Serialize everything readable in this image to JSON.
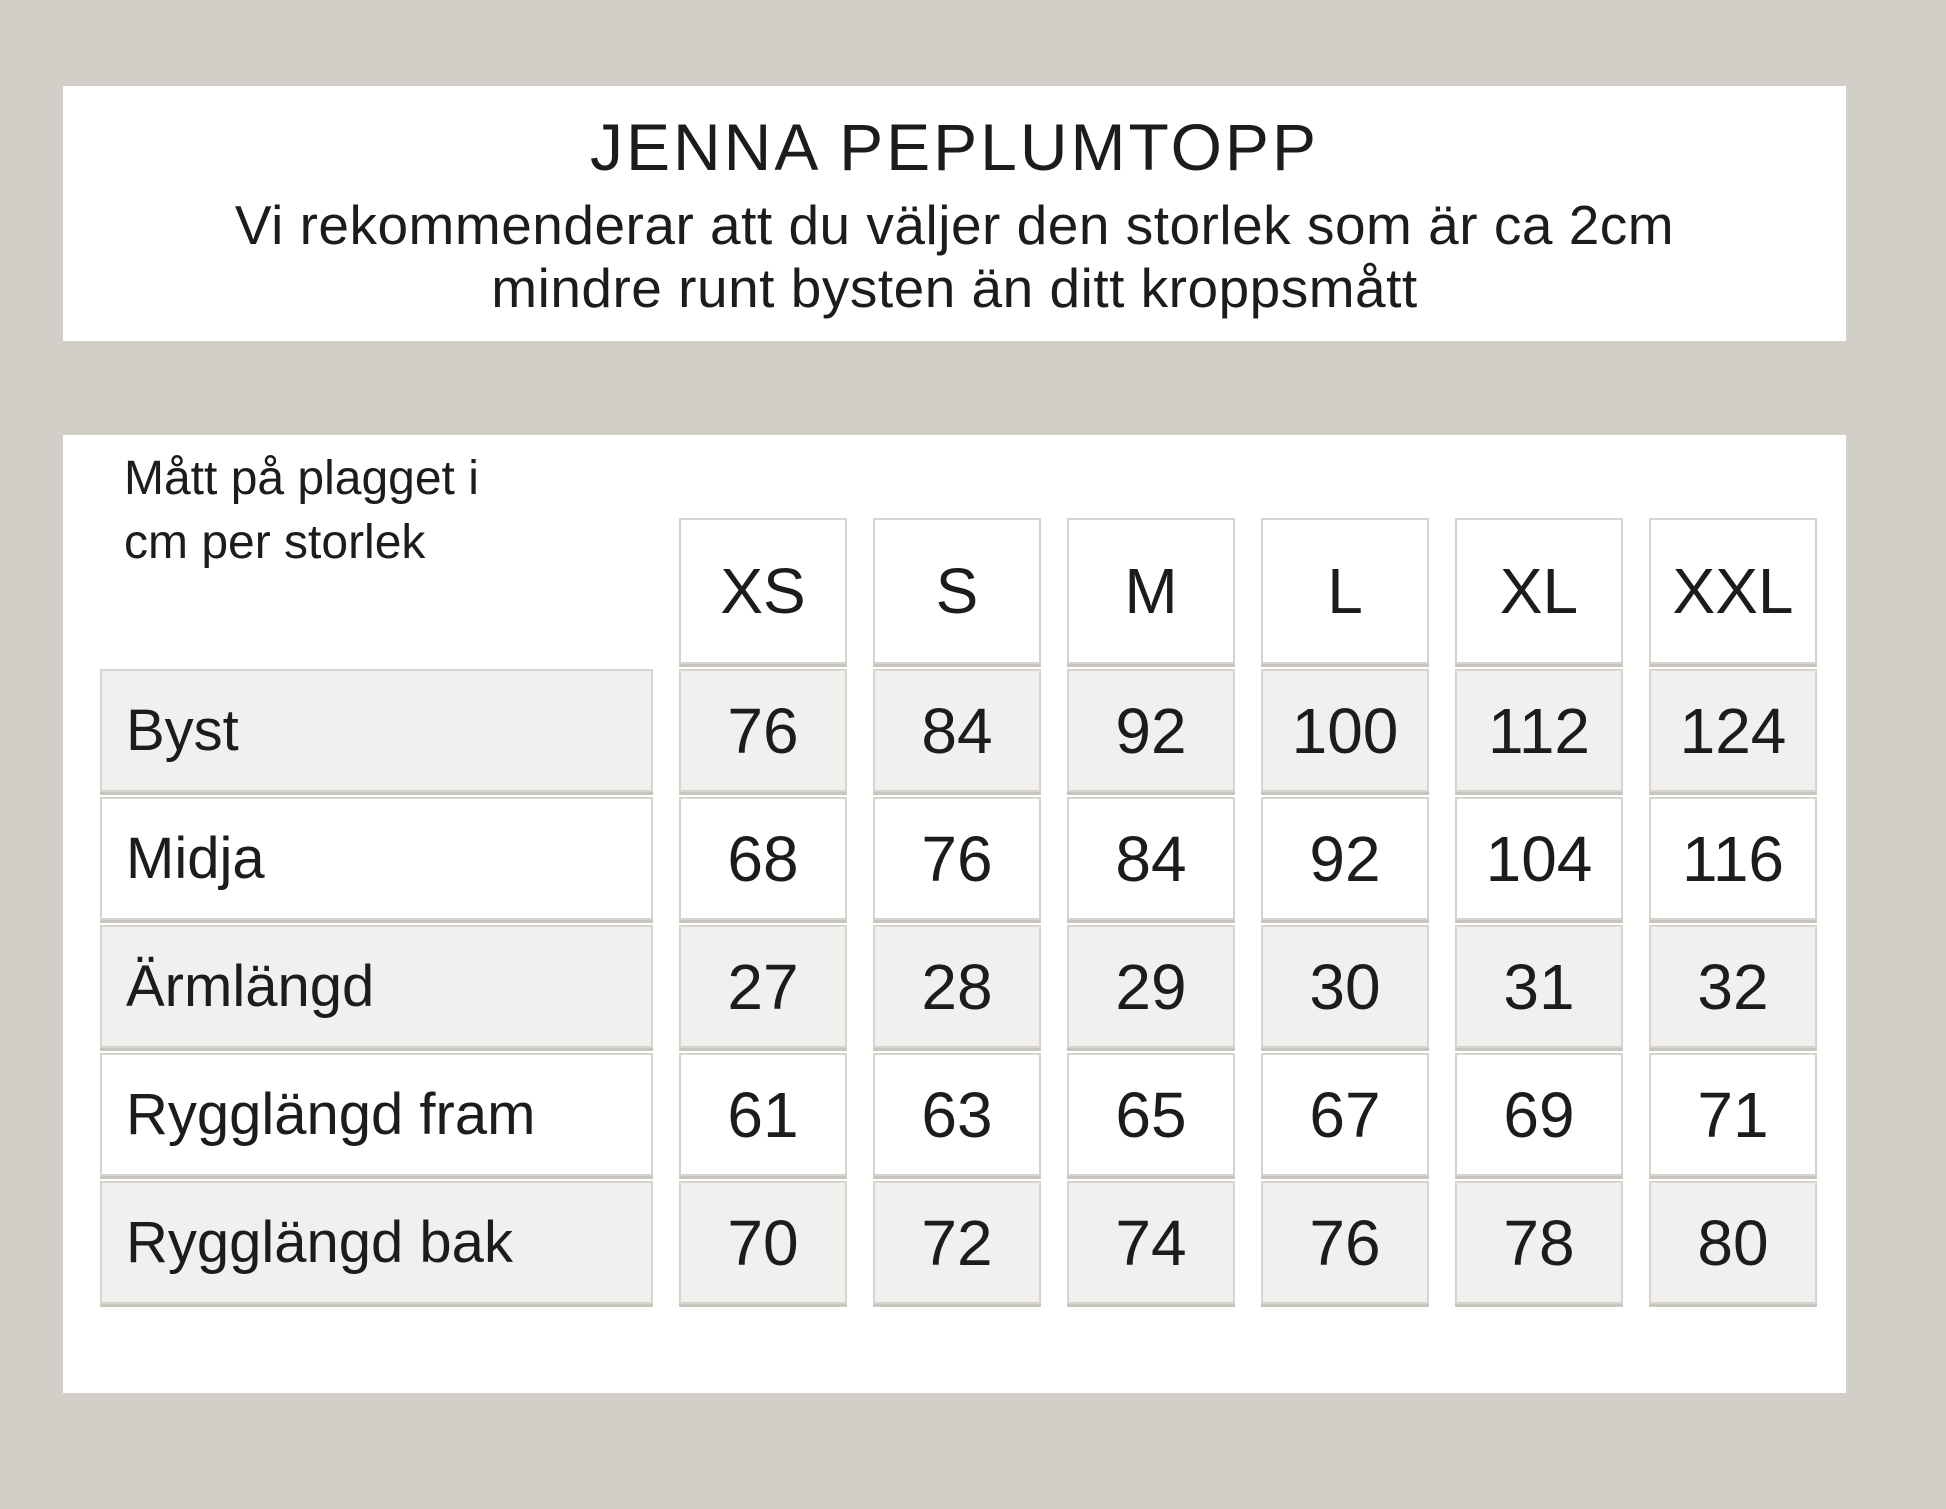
{
  "page": {
    "background_color": "#d2cfc8",
    "panel_color": "#ffffff",
    "shaded_cell_color": "#f1f0ee",
    "cell_border_color": "#d7d4cd",
    "text_color": "#1c1c1a"
  },
  "header": {
    "title": "JENNA PEPLUMTOPP",
    "subtitle_line1": "Vi rekommenderar att du väljer den storlek som är ca 2cm",
    "subtitle_line2": "mindre runt bysten än ditt kroppsmått"
  },
  "table": {
    "measure_header_line1": "Mått på plagget i",
    "measure_header_line2": "cm per storlek"
  },
  "chart_data": {
    "type": "table",
    "title": "JENNA PEPLUMTOPP",
    "columns": [
      "Mått på plagget i cm per storlek",
      "XS",
      "S",
      "M",
      "L",
      "XL",
      "XXL"
    ],
    "rows": [
      [
        "Byst",
        76,
        84,
        92,
        100,
        112,
        124
      ],
      [
        "Midja",
        68,
        76,
        84,
        92,
        104,
        116
      ],
      [
        "Ärmlängd",
        27,
        28,
        29,
        30,
        31,
        32
      ],
      [
        "Rygglängd fram",
        61,
        63,
        65,
        67,
        69,
        71
      ],
      [
        "Rygglängd bak",
        70,
        72,
        74,
        76,
        78,
        80
      ]
    ],
    "shaded_row_indices": [
      0,
      2,
      4
    ]
  }
}
